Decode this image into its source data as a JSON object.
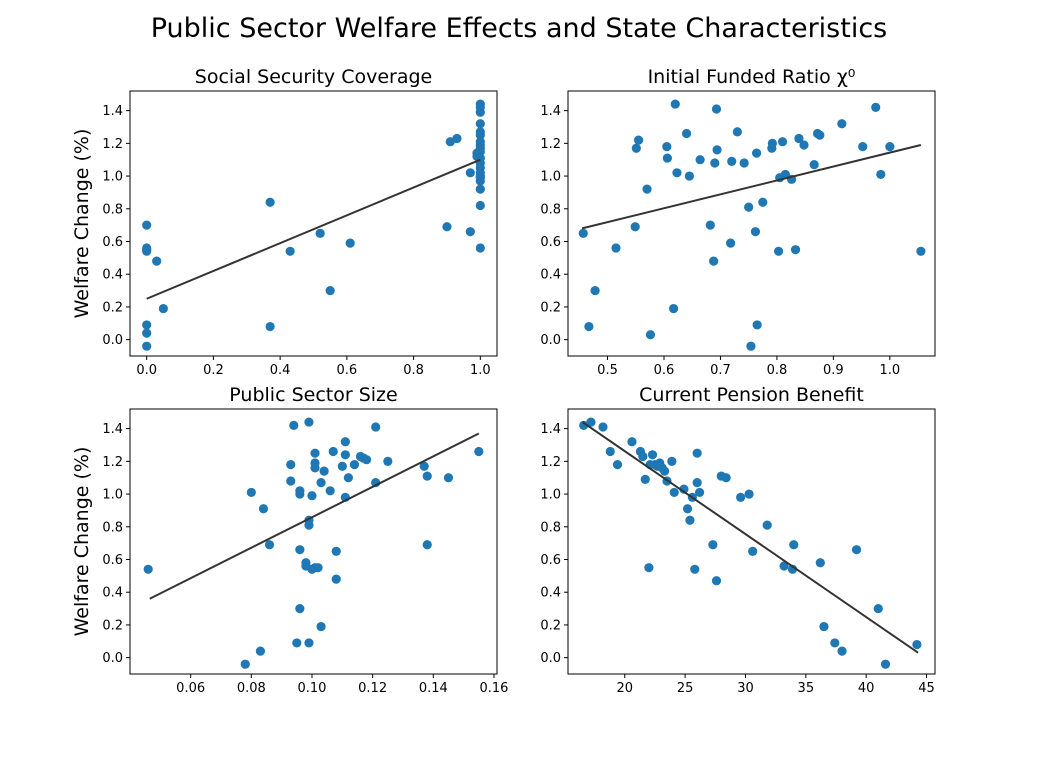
{
  "figure": {
    "title": "Public Sector Welfare Effects and State Characteristics"
  },
  "chart_data": [
    {
      "type": "scatter",
      "title": "Social Security Coverage",
      "xlabel": "",
      "ylabel": "Welfare Change (%)",
      "xlim": [
        -0.05,
        1.05
      ],
      "ylim": [
        -0.1,
        1.52
      ],
      "xticks": [
        0.0,
        0.2,
        0.4,
        0.6,
        0.8,
        1.0
      ],
      "xtick_labels": [
        "0.0",
        "0.2",
        "0.4",
        "0.6",
        "0.8",
        "1.0"
      ],
      "yticks": [
        0.0,
        0.2,
        0.4,
        0.6,
        0.8,
        1.0,
        1.2,
        1.4
      ],
      "ytick_labels": [
        "0.0",
        "0.2",
        "0.4",
        "0.6",
        "0.8",
        "1.0",
        "1.2",
        "1.4"
      ],
      "point_color": "#1f77b4",
      "fit_color": "#333333",
      "fit_line": {
        "x": [
          0.0,
          1.0
        ],
        "y": [
          0.25,
          1.1
        ]
      },
      "points": {
        "x": [
          0.0,
          0.0,
          0.0,
          0.0,
          0.0,
          0.0,
          0.0,
          0.03,
          0.05,
          0.37,
          0.37,
          0.43,
          0.52,
          0.55,
          0.61,
          0.9,
          0.91,
          0.93,
          0.97,
          0.97,
          0.99,
          0.99,
          1.0,
          1.0,
          1.0,
          1.0,
          1.0,
          1.0,
          1.0,
          1.0,
          1.0,
          1.0,
          1.0,
          1.0,
          1.0,
          1.0,
          1.0,
          1.0,
          1.0,
          1.0,
          1.0,
          1.0,
          1.0
        ],
        "y": [
          0.7,
          0.55,
          0.54,
          0.09,
          0.04,
          -0.04,
          0.56,
          0.48,
          0.19,
          0.84,
          0.08,
          0.54,
          0.65,
          0.3,
          0.59,
          0.69,
          1.21,
          1.23,
          1.02,
          0.66,
          1.14,
          1.12,
          1.44,
          1.42,
          1.39,
          1.32,
          1.27,
          1.25,
          1.21,
          1.19,
          1.17,
          1.15,
          1.11,
          1.08,
          1.05,
          1.02,
          1.0,
          0.99,
          0.97,
          0.92,
          0.82,
          0.56,
          1.0
        ]
      }
    },
    {
      "type": "scatter",
      "title": "Initial Funded Ratio χ⁰",
      "xlabel": "",
      "ylabel": "",
      "xlim": [
        0.43,
        1.08
      ],
      "ylim": [
        -0.1,
        1.52
      ],
      "xticks": [
        0.5,
        0.6,
        0.7,
        0.8,
        0.9,
        1.0
      ],
      "xtick_labels": [
        "0.5",
        "0.6",
        "0.7",
        "0.8",
        "0.9",
        "1.0"
      ],
      "yticks": [
        0.0,
        0.2,
        0.4,
        0.6,
        0.8,
        1.0,
        1.2,
        1.4
      ],
      "ytick_labels": [
        "0.0",
        "0.2",
        "0.4",
        "0.6",
        "0.8",
        "1.0",
        "1.2",
        "1.4"
      ],
      "point_color": "#1f77b4",
      "fit_color": "#333333",
      "fit_line": {
        "x": [
          0.455,
          1.055
        ],
        "y": [
          0.68,
          1.19
        ]
      },
      "points": {
        "x": [
          0.457,
          0.467,
          0.478,
          0.515,
          0.549,
          0.551,
          0.555,
          0.57,
          0.576,
          0.605,
          0.606,
          0.617,
          0.62,
          0.623,
          0.64,
          0.645,
          0.664,
          0.682,
          0.688,
          0.69,
          0.693,
          0.694,
          0.718,
          0.72,
          0.73,
          0.742,
          0.75,
          0.754,
          0.762,
          0.764,
          0.765,
          0.775,
          0.791,
          0.792,
          0.803,
          0.805,
          0.81,
          0.815,
          0.826,
          0.833,
          0.839,
          0.848,
          0.866,
          0.872,
          0.876,
          0.915,
          0.952,
          0.975,
          0.984,
          1.0,
          1.055
        ],
        "y": [
          0.65,
          0.08,
          0.3,
          0.56,
          0.69,
          1.17,
          1.22,
          0.92,
          0.03,
          1.18,
          1.11,
          0.19,
          1.44,
          1.02,
          1.26,
          1.0,
          1.1,
          0.7,
          0.48,
          1.08,
          1.41,
          1.16,
          0.59,
          1.09,
          1.27,
          1.08,
          0.81,
          -0.04,
          0.66,
          1.14,
          0.09,
          0.84,
          1.17,
          1.2,
          0.54,
          0.99,
          1.21,
          1.01,
          0.98,
          0.55,
          1.23,
          1.19,
          1.07,
          1.26,
          1.25,
          1.32,
          1.18,
          1.42,
          1.01,
          1.18,
          0.54
        ]
      }
    },
    {
      "type": "scatter",
      "title": "Public Sector Size",
      "xlabel": "",
      "ylabel": "Welfare Change (%)",
      "xlim": [
        0.04,
        0.161
      ],
      "ylim": [
        -0.1,
        1.52
      ],
      "xticks": [
        0.06,
        0.08,
        0.1,
        0.12,
        0.14,
        0.16
      ],
      "xtick_labels": [
        "0.06",
        "0.08",
        "0.10",
        "0.12",
        "0.14",
        "0.16"
      ],
      "yticks": [
        0.0,
        0.2,
        0.4,
        0.6,
        0.8,
        1.0,
        1.2,
        1.4
      ],
      "ytick_labels": [
        "0.0",
        "0.2",
        "0.4",
        "0.6",
        "0.8",
        "1.0",
        "1.2",
        "1.4"
      ],
      "point_color": "#1f77b4",
      "fit_color": "#333333",
      "fit_line": {
        "x": [
          0.0465,
          0.155
        ],
        "y": [
          0.36,
          1.37
        ]
      },
      "points": {
        "x": [
          0.046,
          0.078,
          0.08,
          0.083,
          0.084,
          0.086,
          0.093,
          0.093,
          0.094,
          0.095,
          0.096,
          0.096,
          0.096,
          0.096,
          0.098,
          0.098,
          0.099,
          0.099,
          0.099,
          0.099,
          0.1,
          0.1,
          0.101,
          0.101,
          0.101,
          0.101,
          0.102,
          0.103,
          0.103,
          0.104,
          0.106,
          0.107,
          0.108,
          0.108,
          0.11,
          0.111,
          0.111,
          0.111,
          0.112,
          0.114,
          0.116,
          0.117,
          0.118,
          0.121,
          0.121,
          0.125,
          0.137,
          0.138,
          0.138,
          0.145,
          0.155
        ],
        "y": [
          0.54,
          -0.04,
          1.01,
          0.04,
          0.91,
          0.69,
          1.18,
          1.08,
          1.42,
          0.09,
          0.3,
          1.02,
          1.0,
          0.66,
          0.56,
          0.58,
          1.44,
          0.84,
          0.81,
          0.09,
          0.99,
          0.54,
          1.16,
          1.25,
          1.19,
          0.55,
          0.55,
          0.19,
          1.07,
          1.14,
          1.02,
          1.26,
          0.65,
          0.48,
          1.17,
          1.32,
          1.24,
          0.98,
          1.1,
          1.18,
          1.23,
          1.22,
          1.21,
          1.41,
          1.07,
          1.2,
          1.17,
          1.11,
          0.69,
          1.1,
          1.26
        ]
      }
    },
    {
      "type": "scatter",
      "title": "Current Pension Benefit",
      "xlabel": "",
      "ylabel": "",
      "xlim": [
        15.3,
        45.7
      ],
      "ylim": [
        -0.1,
        1.52
      ],
      "xticks": [
        20,
        25,
        30,
        35,
        40,
        45
      ],
      "xtick_labels": [
        "20",
        "25",
        "30",
        "35",
        "40",
        "45"
      ],
      "yticks": [
        0.0,
        0.2,
        0.4,
        0.6,
        0.8,
        1.0,
        1.2,
        1.4
      ],
      "ytick_labels": [
        "0.0",
        "0.2",
        "0.4",
        "0.6",
        "0.8",
        "1.0",
        "1.2",
        "1.4"
      ],
      "point_color": "#1f77b4",
      "fit_color": "#333333",
      "fit_line": {
        "x": [
          16.5,
          44.3
        ],
        "y": [
          1.44,
          0.03
        ]
      },
      "points": {
        "x": [
          16.6,
          17.2,
          18.2,
          18.8,
          19.4,
          20.6,
          21.3,
          21.5,
          21.7,
          22.0,
          22.1,
          22.3,
          22.5,
          22.7,
          22.9,
          23.1,
          23.3,
          23.5,
          23.9,
          24.1,
          24.9,
          25.2,
          25.4,
          25.6,
          25.8,
          26.0,
          26.0,
          26.2,
          27.3,
          27.6,
          28.0,
          28.4,
          29.6,
          30.3,
          30.6,
          31.8,
          33.2,
          33.9,
          34.0,
          36.2,
          36.5,
          37.4,
          38.0,
          39.2,
          41.0,
          41.6,
          44.2
        ],
        "y": [
          1.42,
          1.44,
          1.41,
          1.26,
          1.18,
          1.32,
          1.26,
          1.23,
          1.09,
          0.55,
          1.18,
          1.24,
          1.18,
          1.17,
          1.19,
          1.16,
          1.14,
          1.08,
          1.2,
          1.01,
          1.03,
          0.91,
          0.84,
          0.98,
          0.54,
          1.25,
          1.07,
          1.01,
          0.69,
          0.47,
          1.11,
          1.1,
          0.98,
          1.0,
          0.65,
          0.81,
          0.56,
          0.54,
          0.69,
          0.58,
          0.19,
          0.09,
          0.04,
          0.66,
          0.3,
          -0.04,
          0.08
        ]
      }
    }
  ]
}
